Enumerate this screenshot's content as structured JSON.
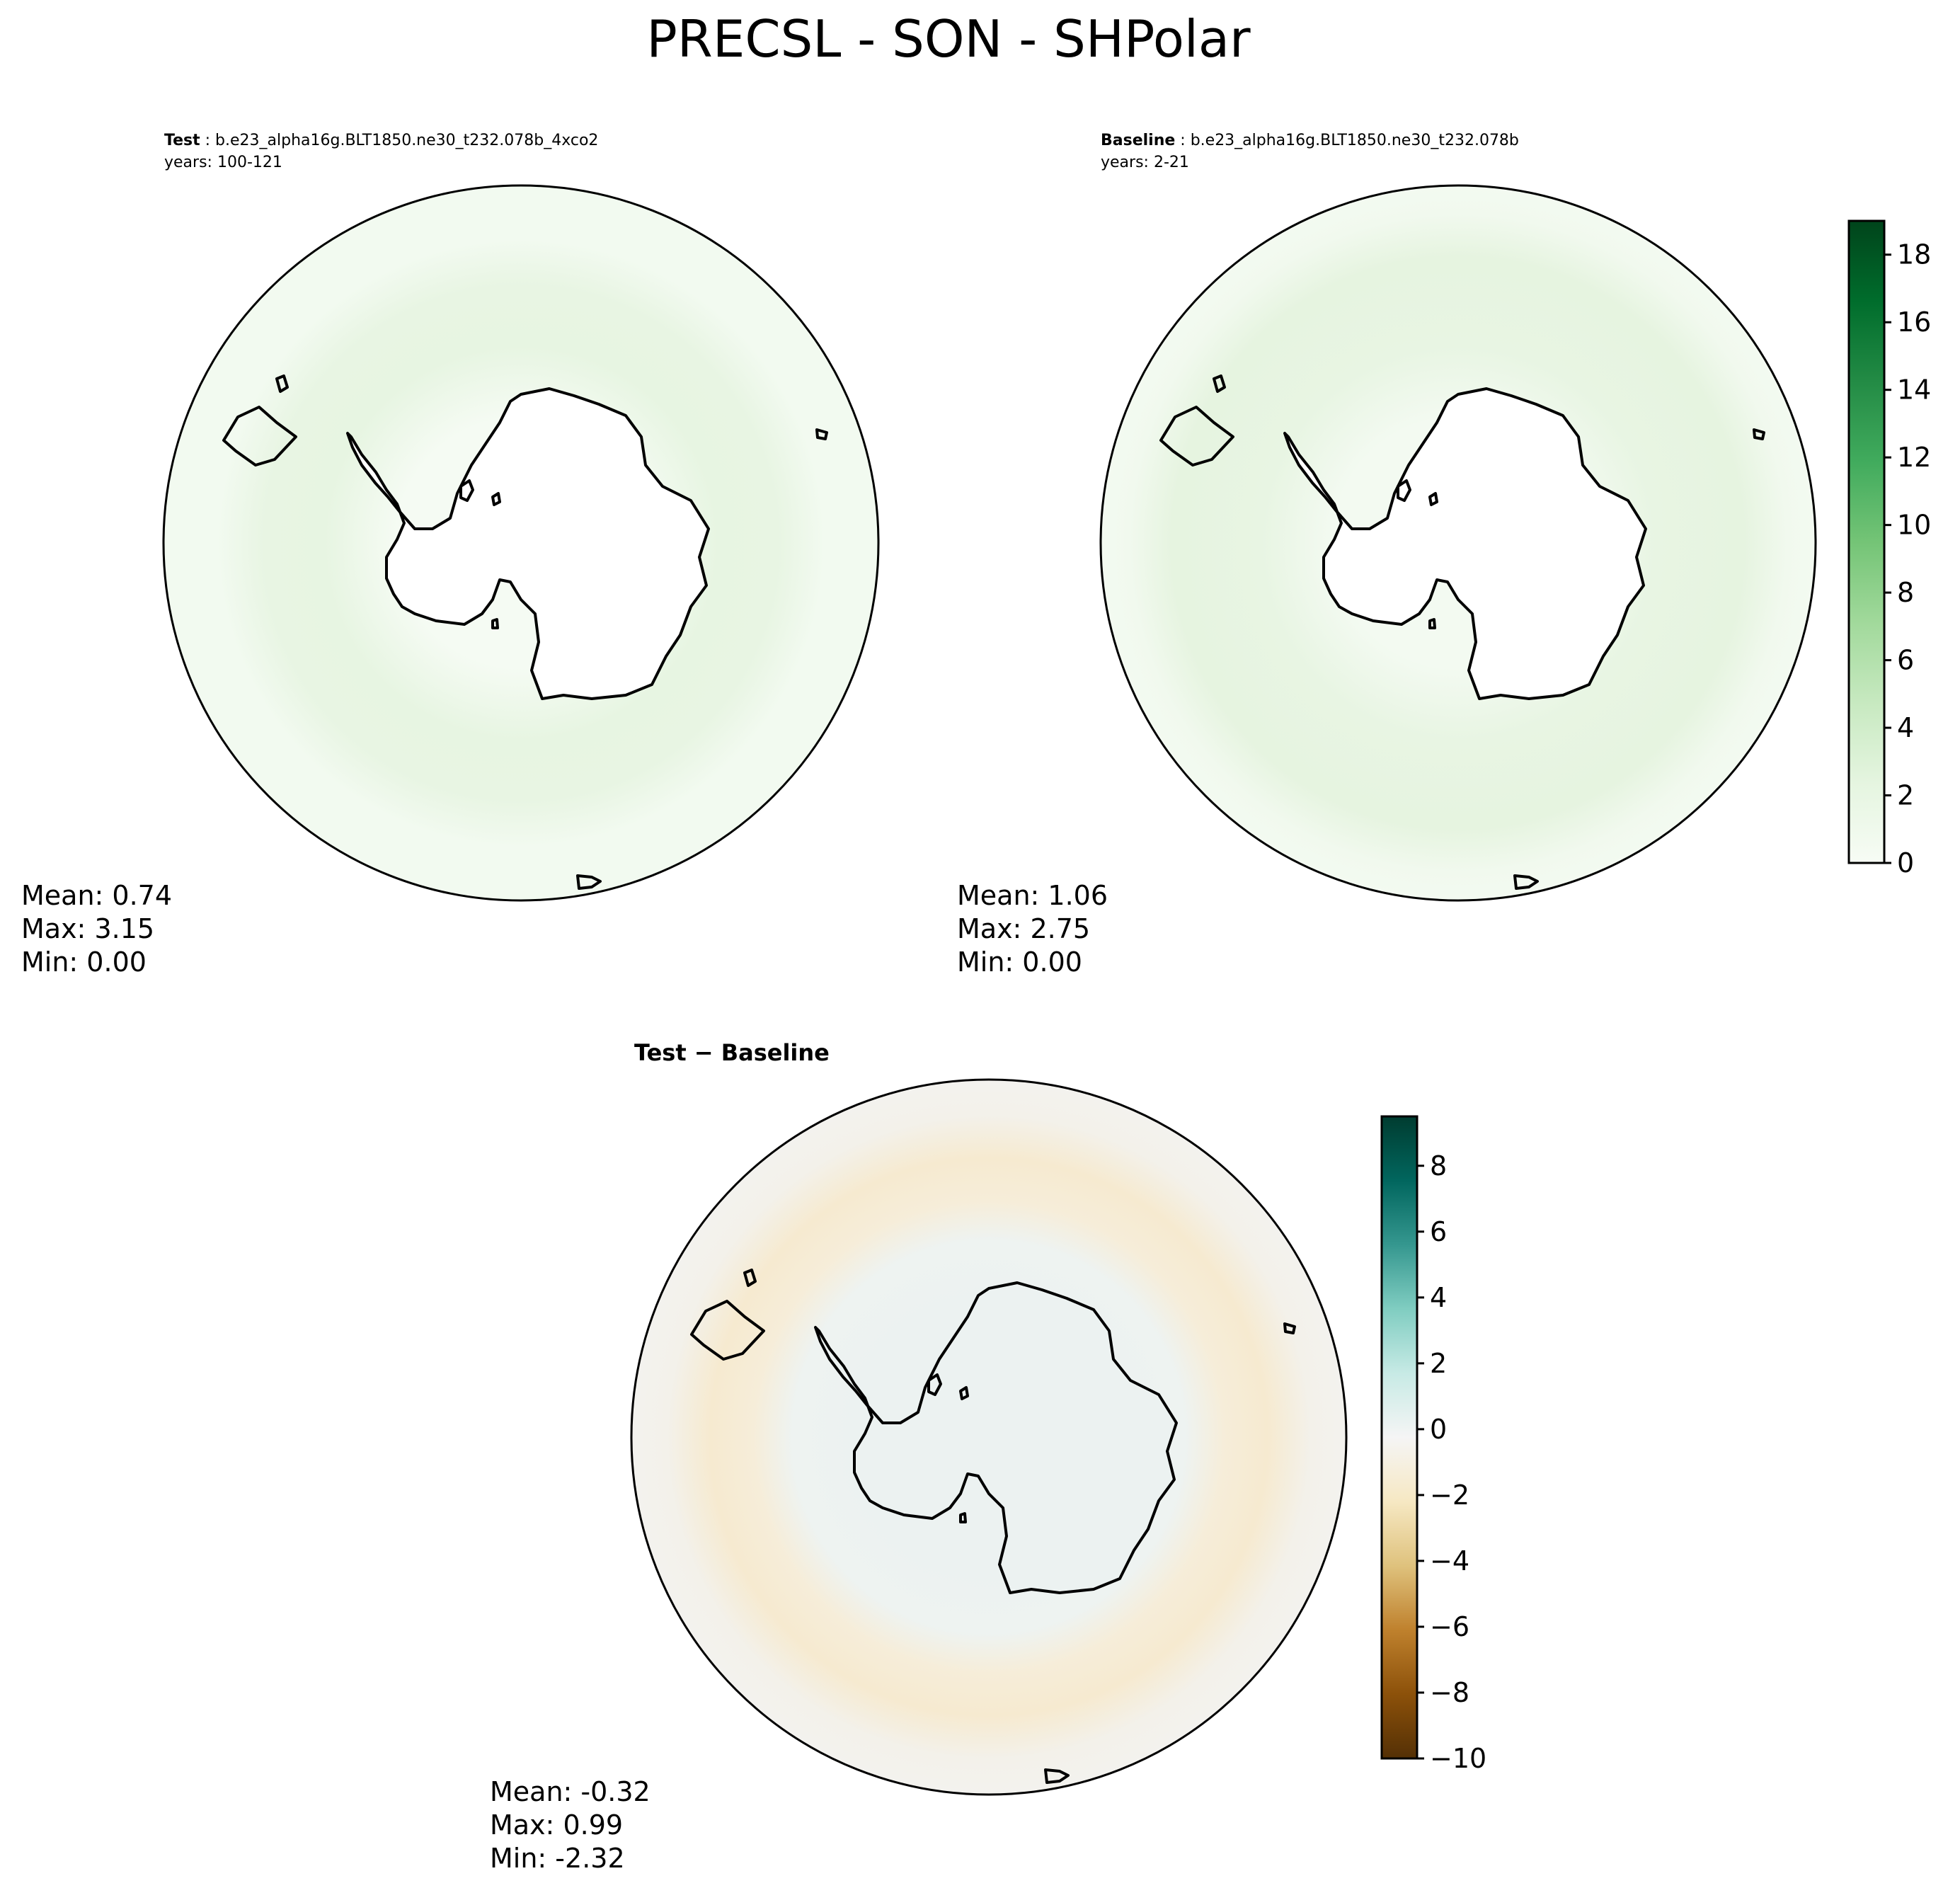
{
  "figure": {
    "title": "PRECSL - SON - SHPolar"
  },
  "panels": [
    {
      "id": "test",
      "label_bold": "Test",
      "label_rest": " : b.e23_alpha16g.BLT1850.ne30_t232.078b_4xco2",
      "years": "years: 100-121",
      "stats": {
        "mean": "Mean:  0.74",
        "max": "Max:  3.15",
        "min": "Min:  0.00"
      }
    },
    {
      "id": "baseline",
      "label_bold": "Baseline",
      "label_rest": " : b.e23_alpha16g.BLT1850.ne30_t232.078b",
      "years": "years: 2-21",
      "stats": {
        "mean": "Mean:  1.06",
        "max": "Max:  2.75",
        "min": "Min:  0.00"
      }
    },
    {
      "id": "diff",
      "label_bold": "Test − Baseline",
      "stats": {
        "mean": "Mean: -0.32",
        "max": "Max:  0.99",
        "min": "Min: -2.32"
      }
    }
  ],
  "colorbars": [
    {
      "id": "abs",
      "colormap": "Greens",
      "range": [
        0,
        19
      ],
      "ticks": [
        0,
        2,
        4,
        6,
        8,
        10,
        12,
        14,
        16,
        18
      ],
      "tick_labels": [
        "0",
        "2",
        "4",
        "6",
        "8",
        "10",
        "12",
        "14",
        "16",
        "18"
      ]
    },
    {
      "id": "diff",
      "colormap": "BrBG",
      "range": [
        -10,
        9.5
      ],
      "ticks": [
        -10,
        -8,
        -6,
        -4,
        -2,
        0,
        2,
        4,
        6,
        8
      ],
      "tick_labels": [
        "−10",
        "−8",
        "−6",
        "−4",
        "−2",
        "0",
        "2",
        "4",
        "6",
        "8"
      ]
    }
  ],
  "colors": {
    "greens": [
      "#f7fcf5",
      "#e5f5e0",
      "#c7e9c0",
      "#a1d99b",
      "#74c476",
      "#41ab5d",
      "#238b45",
      "#006d2c",
      "#00441b"
    ],
    "brbg": [
      "#543005",
      "#8c510a",
      "#bf812d",
      "#dfc27d",
      "#f6e8c3",
      "#f5f5f5",
      "#c7eae5",
      "#80cdc1",
      "#35978f",
      "#01665e",
      "#003c30"
    ],
    "ocean_test": "#f2faf0",
    "ring_test": "#e6f4e0",
    "ocean_base": "#f2faf0",
    "ring_base": "#e4f3de",
    "ocean_diff": "#f3f2ee",
    "ring_diff": "#f7ebd0",
    "inner_diff": "#ecf2f1"
  }
}
